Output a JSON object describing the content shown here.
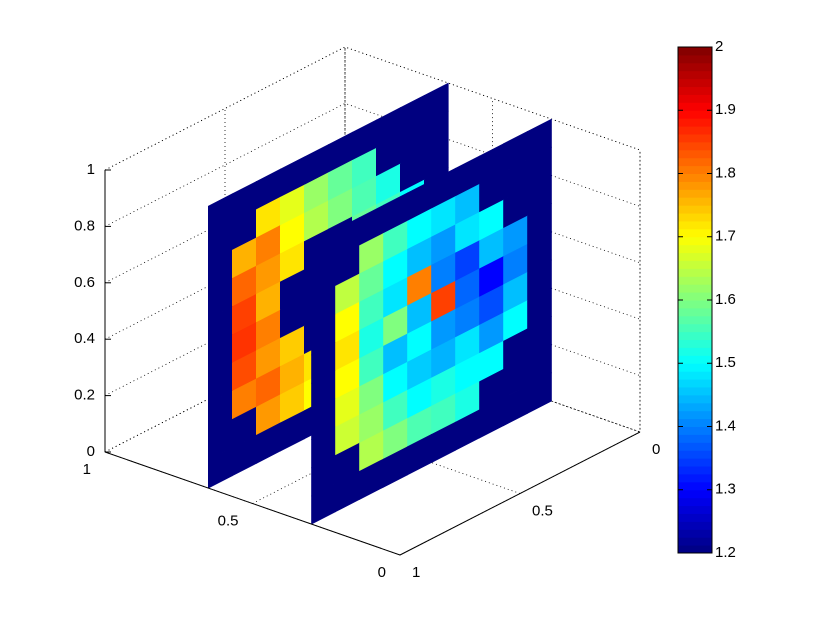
{
  "chart_data": {
    "type": "slice3d",
    "colormap": "jet",
    "grid": true,
    "xlim": [
      0,
      1
    ],
    "xticks": [
      0,
      0.5,
      1
    ],
    "ylim": [
      0,
      1
    ],
    "yticks": [
      0,
      0.5,
      1
    ],
    "zlim": [
      0,
      1
    ],
    "zticks": [
      0,
      0.2,
      0.4,
      0.6,
      0.8,
      1
    ],
    "clim": [
      1.2,
      2
    ],
    "cticks": [
      1.2,
      1.3,
      1.4,
      1.5,
      1.6,
      1.7,
      1.8,
      1.9,
      2
    ],
    "slices": [
      {
        "x": 0.65,
        "values": [
          [
            1.2,
            1.2,
            1.2,
            1.2,
            1.2,
            1.2,
            1.2,
            1.2,
            1.2,
            1.2
          ],
          [
            1.2,
            1.2,
            1.72,
            1.68,
            1.62,
            1.58,
            1.55,
            1.2,
            1.2,
            1.2
          ],
          [
            1.2,
            1.76,
            1.8,
            1.7,
            1.64,
            1.6,
            1.56,
            1.52,
            1.2,
            1.2
          ],
          [
            1.2,
            1.82,
            1.78,
            1.72,
            1.2,
            1.2,
            1.58,
            1.55,
            1.5,
            1.2
          ],
          [
            1.2,
            1.85,
            1.76,
            1.2,
            1.2,
            1.2,
            1.2,
            1.6,
            1.52,
            1.2
          ],
          [
            1.2,
            1.86,
            1.8,
            1.2,
            1.2,
            1.2,
            1.2,
            1.62,
            1.55,
            1.2
          ],
          [
            1.2,
            1.84,
            1.78,
            1.74,
            1.2,
            1.2,
            1.66,
            1.6,
            1.5,
            1.2
          ],
          [
            1.2,
            1.8,
            1.82,
            1.76,
            1.72,
            1.7,
            1.64,
            1.58,
            1.2,
            1.2
          ],
          [
            1.2,
            1.2,
            1.78,
            1.74,
            1.7,
            1.66,
            1.62,
            1.2,
            1.2,
            1.2
          ],
          [
            1.2,
            1.2,
            1.2,
            1.2,
            1.2,
            1.2,
            1.2,
            1.2,
            1.2,
            1.2
          ]
        ]
      },
      {
        "x": 0.3,
        "values": [
          [
            1.2,
            1.2,
            1.2,
            1.2,
            1.2,
            1.2,
            1.2,
            1.2,
            1.2,
            1.2
          ],
          [
            1.2,
            1.2,
            1.62,
            1.55,
            1.5,
            1.48,
            1.45,
            1.2,
            1.2,
            1.2
          ],
          [
            1.2,
            1.65,
            1.58,
            1.5,
            1.45,
            1.42,
            1.48,
            1.5,
            1.2,
            1.2
          ],
          [
            1.2,
            1.7,
            1.55,
            1.48,
            1.8,
            1.4,
            1.35,
            1.45,
            1.42,
            1.2
          ],
          [
            1.2,
            1.72,
            1.52,
            1.6,
            1.45,
            1.85,
            1.38,
            1.3,
            1.4,
            1.2
          ],
          [
            1.2,
            1.7,
            1.55,
            1.45,
            1.5,
            1.42,
            1.4,
            1.36,
            1.45,
            1.2
          ],
          [
            1.2,
            1.68,
            1.6,
            1.5,
            1.46,
            1.44,
            1.48,
            1.42,
            1.5,
            1.2
          ],
          [
            1.2,
            1.66,
            1.62,
            1.55,
            1.5,
            1.52,
            1.5,
            1.5,
            1.2,
            1.2
          ],
          [
            1.2,
            1.2,
            1.64,
            1.6,
            1.56,
            1.55,
            1.52,
            1.2,
            1.2,
            1.2
          ],
          [
            1.2,
            1.2,
            1.2,
            1.2,
            1.2,
            1.2,
            1.2,
            1.2,
            1.2,
            1.2
          ]
        ]
      }
    ]
  }
}
